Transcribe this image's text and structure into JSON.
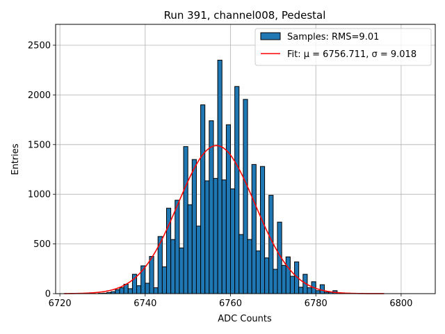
{
  "chart_data": {
    "type": "bar",
    "title": "Run 391, channel008, Pedestal",
    "xlabel": "ADC Counts",
    "ylabel": "Entries",
    "xlim": [
      6719,
      6808
    ],
    "ylim": [
      0,
      2710
    ],
    "xticks": [
      6720,
      6740,
      6760,
      6780,
      6800
    ],
    "yticks": [
      0,
      500,
      1000,
      1500,
      2000,
      2500
    ],
    "grid": true,
    "legend_position": "top-right",
    "bin_start": 6721,
    "bin_width": 1,
    "counts": [
      0,
      0,
      0,
      0,
      0,
      0,
      0,
      0,
      3,
      5,
      12,
      20,
      40,
      60,
      95,
      50,
      195,
      80,
      280,
      105,
      375,
      60,
      575,
      270,
      860,
      545,
      940,
      460,
      1480,
      895,
      1350,
      680,
      1900,
      1135,
      1740,
      1160,
      2350,
      1145,
      1700,
      1055,
      2085,
      595,
      1955,
      545,
      1300,
      430,
      1280,
      360,
      990,
      245,
      720,
      285,
      370,
      175,
      320,
      65,
      195,
      60,
      120,
      30,
      90,
      15,
      15,
      30,
      0,
      0,
      0,
      0,
      0,
      0,
      0,
      0,
      0,
      0,
      0
    ],
    "series": [
      {
        "name": "Samples: RMS=9.01",
        "kind": "histogram",
        "color": "#1f77b4",
        "edgecolor": "#000000"
      },
      {
        "name": "Fit: μ = 6756.711, σ = 9.018",
        "kind": "gaussian-fit",
        "color": "#ff0000",
        "mu": 6756.711,
        "sigma": 9.018,
        "amplitude": 1490,
        "x_range": [
          6721,
          6796
        ]
      }
    ]
  }
}
